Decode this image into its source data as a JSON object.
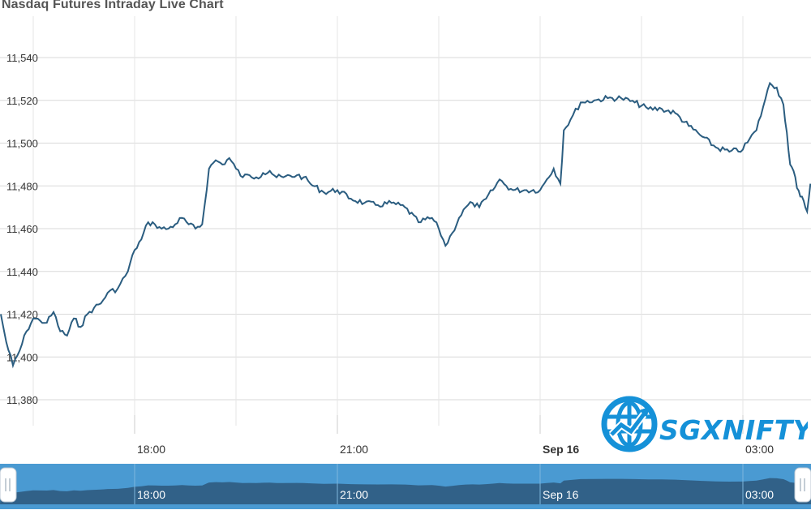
{
  "title": "Nasdaq Futures Intraday Live Chart",
  "logo": {
    "word": "SGXNIFTY",
    "color": "#1591d8"
  },
  "colors": {
    "line": "#2b5d80",
    "grid": "#d9d9d9",
    "navigator_fill": "#2f5e84",
    "navigator_bg": "#4a9ad2"
  },
  "chart_data": {
    "type": "line",
    "title": "Nasdaq Futures Intraday Live Chart",
    "xlabel": "",
    "ylabel": "",
    "ylim": [
      11375,
      11550
    ],
    "yticks": [
      "11,380",
      "11,400",
      "11,420",
      "11,440",
      "11,460",
      "11,480",
      "11,500",
      "11,520",
      "11,540"
    ],
    "ytick_values": [
      11380,
      11400,
      11420,
      11440,
      11460,
      11480,
      11500,
      11520,
      11540
    ],
    "xticks": [
      "18:00",
      "21:00",
      "Sep 16",
      "03:00"
    ],
    "xtick_hours": [
      18,
      21,
      24,
      27
    ],
    "xtick_bold": [
      false,
      false,
      true,
      false
    ],
    "xlim_hours": [
      16.02,
      28.0
    ],
    "grid": true,
    "series": [
      {
        "values": [
          [
            16.02,
            11420
          ],
          [
            16.1,
            11407
          ],
          [
            16.2,
            11396
          ],
          [
            16.3,
            11403
          ],
          [
            16.4,
            11412
          ],
          [
            16.5,
            11418
          ],
          [
            16.6,
            11417
          ],
          [
            16.7,
            11416
          ],
          [
            16.8,
            11421
          ],
          [
            16.9,
            11412
          ],
          [
            17.0,
            11410
          ],
          [
            17.1,
            11418
          ],
          [
            17.2,
            11414
          ],
          [
            17.3,
            11420
          ],
          [
            17.4,
            11423
          ],
          [
            17.5,
            11425
          ],
          [
            17.6,
            11430
          ],
          [
            17.75,
            11432
          ],
          [
            17.9,
            11440
          ],
          [
            18.0,
            11450
          ],
          [
            18.1,
            11455
          ],
          [
            18.2,
            11463
          ],
          [
            18.3,
            11462
          ],
          [
            18.4,
            11460
          ],
          [
            18.5,
            11460
          ],
          [
            18.6,
            11462
          ],
          [
            18.7,
            11465
          ],
          [
            18.8,
            11462
          ],
          [
            18.9,
            11460
          ],
          [
            19.0,
            11462
          ],
          [
            19.1,
            11488
          ],
          [
            19.2,
            11492
          ],
          [
            19.3,
            11490
          ],
          [
            19.4,
            11493
          ],
          [
            19.5,
            11488
          ],
          [
            19.6,
            11484
          ],
          [
            19.7,
            11485
          ],
          [
            19.8,
            11484
          ],
          [
            19.9,
            11486
          ],
          [
            20.0,
            11487
          ],
          [
            20.1,
            11484
          ],
          [
            20.2,
            11484
          ],
          [
            20.4,
            11485
          ],
          [
            20.5,
            11484
          ],
          [
            20.6,
            11481
          ],
          [
            20.8,
            11477
          ],
          [
            21.0,
            11478
          ],
          [
            21.2,
            11474
          ],
          [
            21.4,
            11472
          ],
          [
            21.6,
            11471
          ],
          [
            21.8,
            11472
          ],
          [
            22.0,
            11470
          ],
          [
            22.2,
            11463
          ],
          [
            22.4,
            11465
          ],
          [
            22.5,
            11460
          ],
          [
            22.6,
            11452
          ],
          [
            22.7,
            11458
          ],
          [
            22.8,
            11465
          ],
          [
            22.9,
            11470
          ],
          [
            23.0,
            11472
          ],
          [
            23.1,
            11470
          ],
          [
            23.2,
            11474
          ],
          [
            23.3,
            11478
          ],
          [
            23.4,
            11483
          ],
          [
            23.5,
            11480
          ],
          [
            23.6,
            11478
          ],
          [
            23.8,
            11478
          ],
          [
            24.0,
            11478
          ],
          [
            24.1,
            11483
          ],
          [
            24.2,
            11488
          ],
          [
            24.3,
            11481
          ],
          [
            24.35,
            11506
          ],
          [
            24.45,
            11511
          ],
          [
            24.6,
            11519
          ],
          [
            24.8,
            11520
          ],
          [
            25.0,
            11521
          ],
          [
            25.2,
            11521
          ],
          [
            25.4,
            11519
          ],
          [
            25.6,
            11516
          ],
          [
            25.8,
            11516
          ],
          [
            26.0,
            11514
          ],
          [
            26.2,
            11508
          ],
          [
            26.4,
            11503
          ],
          [
            26.6,
            11498
          ],
          [
            26.8,
            11496
          ],
          [
            27.0,
            11497
          ],
          [
            27.1,
            11502
          ],
          [
            27.2,
            11506
          ],
          [
            27.3,
            11517
          ],
          [
            27.4,
            11528
          ],
          [
            27.5,
            11526
          ],
          [
            27.6,
            11518
          ],
          [
            27.65,
            11505
          ],
          [
            27.7,
            11490
          ],
          [
            27.75,
            11487
          ],
          [
            27.8,
            11479
          ],
          [
            27.85,
            11475
          ],
          [
            27.9,
            11473
          ],
          [
            27.95,
            11468
          ],
          [
            28.0,
            11481
          ]
        ]
      }
    ],
    "navigator": {
      "xticks": [
        "18:00",
        "21:00",
        "Sep 16",
        "03:00"
      ]
    }
  }
}
